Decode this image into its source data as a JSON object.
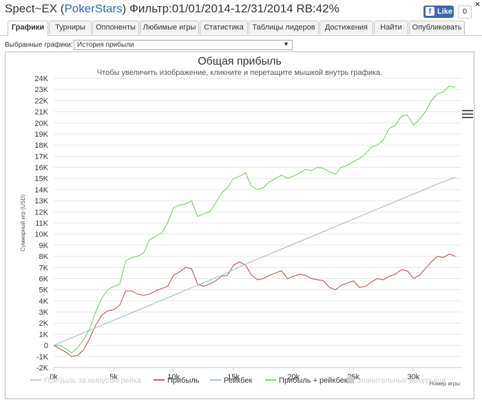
{
  "window": {
    "title_prefix": "Spect~EX (",
    "site": "PokerStars",
    "title_suffix": ") Фильтр:01/01/2014-12/31/2014 RB:42%",
    "close_label": "×",
    "fb_label": "Like",
    "fb_count": "0"
  },
  "tabs": [
    "Графики",
    "Турниры",
    "Оппоненты",
    "Любимые игры",
    "Статистика",
    "Таблицы лидеров",
    "Достижения",
    "Найти",
    "Опубликовать"
  ],
  "active_tab": 0,
  "selector": {
    "label": "Выбранные графики:",
    "value": "История прибыли",
    "arrow": "▼"
  },
  "colors": {
    "nonrake": "#cccccc",
    "profit": "#b06560",
    "rakeback": "#a8bfcf",
    "total": "#7fd16f",
    "significant": "#cccccc"
  },
  "chart_data": {
    "type": "line",
    "title": "Общая прибыль",
    "subtitle": "Чтобы увеличить изображение, кликните и перетащите мышкой внутрь графика.",
    "ylabel": "Суммарный игр (USD)",
    "xlabel": "Номер игры",
    "xlim": [
      0,
      34000
    ],
    "ylim": [
      -2000,
      24000
    ],
    "x_ticks": [
      0,
      5000,
      10000,
      15000,
      20000,
      25000,
      30000
    ],
    "x_tick_labels": [
      "0k",
      "5k",
      "10k",
      "15k",
      "20k",
      "25k",
      "30k"
    ],
    "y_ticks": [
      -2000,
      -1000,
      0,
      1000,
      2000,
      3000,
      4000,
      5000,
      6000,
      7000,
      8000,
      9000,
      10000,
      11000,
      12000,
      13000,
      14000,
      15000,
      16000,
      17000,
      18000,
      19000,
      20000,
      21000,
      22000,
      23000,
      24000
    ],
    "y_tick_labels": [
      "-2K",
      "-1K",
      "0",
      "1K",
      "2K",
      "3K",
      "4K",
      "5K",
      "6K",
      "7K",
      "8K",
      "9K",
      "10K",
      "11K",
      "12K",
      "13K",
      "14K",
      "15K",
      "16K",
      "17K",
      "18K",
      "19K",
      "20K",
      "21K",
      "22K",
      "23K",
      "24K"
    ],
    "grid": true,
    "legend": [
      {
        "name": "Прибыль за минусом рейка",
        "key": "nonrake",
        "visible": false
      },
      {
        "name": "Прибыль",
        "key": "profit",
        "visible": true
      },
      {
        "name": "Рейкбек",
        "key": "rakeback",
        "visible": true
      },
      {
        "name": "Прибыль + рейкбек",
        "key": "total",
        "visible": true
      },
      {
        "name": "Значительные выигрыши",
        "key": "significant",
        "visible": false,
        "marker": "square"
      }
    ],
    "series": [
      {
        "key": "total",
        "x": [
          0,
          500,
          1000,
          1500,
          2000,
          2500,
          3000,
          3500,
          4000,
          4500,
          5000,
          5500,
          6000,
          6500,
          7000,
          7500,
          8000,
          8500,
          9000,
          9500,
          10000,
          10500,
          11000,
          11500,
          12000,
          12500,
          13000,
          13500,
          14000,
          14500,
          15000,
          15500,
          16000,
          16500,
          17000,
          17500,
          18000,
          18500,
          19000,
          19500,
          20000,
          20500,
          21000,
          21500,
          22000,
          22500,
          23000,
          23500,
          24000,
          24500,
          25000,
          25500,
          26000,
          26500,
          27000,
          27500,
          28000,
          28500,
          29000,
          29500,
          30000,
          30500,
          31000,
          31500,
          32000,
          32500,
          33000,
          33500
        ],
        "y": [
          0,
          0,
          -300,
          -700,
          -200,
          500,
          1500,
          3000,
          4200,
          5000,
          5300,
          5500,
          7600,
          7900,
          8000,
          8300,
          9500,
          9800,
          10100,
          11000,
          12400,
          12600,
          12700,
          13000,
          11600,
          11800,
          12000,
          12800,
          13700,
          14200,
          15000,
          15200,
          15500,
          14300,
          14000,
          14200,
          14700,
          15000,
          15300,
          15000,
          15200,
          15500,
          15800,
          15700,
          16000,
          15900,
          15600,
          15400,
          16000,
          16200,
          16500,
          16800,
          17200,
          17800,
          18000,
          18500,
          19500,
          19800,
          20600,
          20700,
          19800,
          20300,
          21000,
          22000,
          22600,
          22800,
          23300,
          23200
        ]
      },
      {
        "key": "profit",
        "x": [
          0,
          500,
          1000,
          1500,
          2000,
          2500,
          3000,
          3500,
          4000,
          4500,
          5000,
          5500,
          6000,
          6500,
          7000,
          7500,
          8000,
          8500,
          9000,
          9500,
          10000,
          10500,
          11000,
          11500,
          12000,
          12500,
          13000,
          13500,
          14000,
          14500,
          15000,
          15500,
          16000,
          16500,
          17000,
          17500,
          18000,
          18500,
          19000,
          19500,
          20000,
          20500,
          21000,
          21500,
          22000,
          22500,
          23000,
          23500,
          24000,
          24500,
          25000,
          25500,
          26000,
          26500,
          27000,
          27500,
          28000,
          28500,
          29000,
          29500,
          30000,
          30500,
          31000,
          31500,
          32000,
          32500,
          33000,
          33500
        ],
        "y": [
          0,
          -300,
          -600,
          -1000,
          -900,
          -400,
          600,
          1800,
          2700,
          3100,
          3200,
          3600,
          4900,
          4900,
          4600,
          4500,
          4600,
          4900,
          5100,
          5300,
          6300,
          6600,
          7000,
          6900,
          5500,
          5300,
          5500,
          5800,
          6200,
          6300,
          7200,
          7500,
          7200,
          6300,
          5900,
          6000,
          6300,
          6500,
          6700,
          6000,
          6200,
          6400,
          6300,
          6000,
          5900,
          5800,
          5200,
          5000,
          5400,
          5600,
          5800,
          5200,
          5300,
          5700,
          6000,
          5900,
          6200,
          6400,
          6800,
          6700,
          6000,
          6300,
          6900,
          7500,
          8000,
          7900,
          8200,
          8000
        ]
      },
      {
        "key": "rakeback",
        "x": [
          0,
          2000,
          4000,
          6000,
          8000,
          10000,
          12000,
          14000,
          16000,
          18000,
          20000,
          22000,
          24000,
          26000,
          28000,
          30000,
          32000,
          33500
        ],
        "y": [
          0,
          900,
          1800,
          2700,
          3600,
          4500,
          5400,
          6300,
          7300,
          8200,
          9100,
          10000,
          10900,
          11800,
          12700,
          13600,
          14500,
          15100
        ]
      }
    ]
  }
}
